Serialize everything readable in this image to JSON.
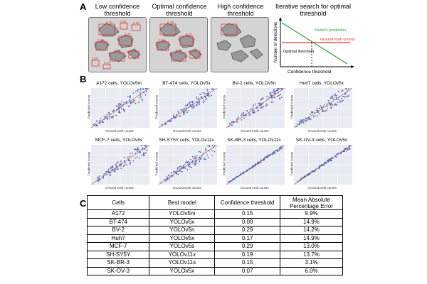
{
  "panels": {
    "a": "A",
    "b": "B",
    "c": "C"
  },
  "thresholds": {
    "low": "Low confidence threshold",
    "optimal": "Optimal confidence threshold",
    "high": "High confidence threshold"
  },
  "detections": [
    "0.18",
    "0.45",
    "0.63",
    "0.21",
    "0.42",
    "0.61",
    "0.02",
    "0.09",
    "0.25",
    "0.14"
  ],
  "search": {
    "title": "Iterative search for optimal threshold",
    "model_label": "Model's prediction",
    "gt_label": "Ground truth counts",
    "opt_label": "Optimal threshold",
    "xlabel": "Confidence threshold",
    "ylabel": "Number of detections"
  },
  "scatter": {
    "xlabel": "Ground truth counts",
    "ylabel": "Predicted counts",
    "plots": [
      {
        "title": "A172 cells, YOLOv5m"
      },
      {
        "title": "BT-474 cells, YOLOv5x"
      },
      {
        "title": "BV-2 cells, YOLOv5n"
      },
      {
        "title": "Huh7 cells, YOLOv5x"
      },
      {
        "title": "MCF-7 cells, YOLOv5s"
      },
      {
        "title": "SH-SY5Y cells, YOLOv11x"
      },
      {
        "title": "SK-BR-3 cells, YOLOv11s"
      },
      {
        "title": "SK-OV-3 cells, YOLOv5x"
      }
    ]
  },
  "table": {
    "headers": [
      "Cells",
      "Best model",
      "Confidence threshold",
      "Mean Absolute Percentage Error"
    ],
    "rows": [
      [
        "A172",
        "YOLOv5m",
        "0.15",
        "9.9%"
      ],
      [
        "BT-474",
        "YOLOv5x",
        "0.09",
        "14.9%"
      ],
      [
        "BV-2",
        "YOLOv5n",
        "0.29",
        "14.2%"
      ],
      [
        "Huh7",
        "YOLOv5x",
        "0.17",
        "14.9%"
      ],
      [
        "MCF-7",
        "YOLOv5s",
        "0.29",
        "13.0%"
      ],
      [
        "SH-SY5Y",
        "YOLOv11x",
        "0.19",
        "13.7%"
      ],
      [
        "SK-BR-3",
        "YOLOv11s",
        "0.15",
        "3.1%"
      ],
      [
        "SK-OV-3",
        "YOLOv5x",
        "0.07",
        "6.0%"
      ]
    ]
  },
  "colors": {
    "accent_red": "#e0332e",
    "green": "#22a33a",
    "point": "#4a63b0",
    "ideal": "#d9534f"
  }
}
